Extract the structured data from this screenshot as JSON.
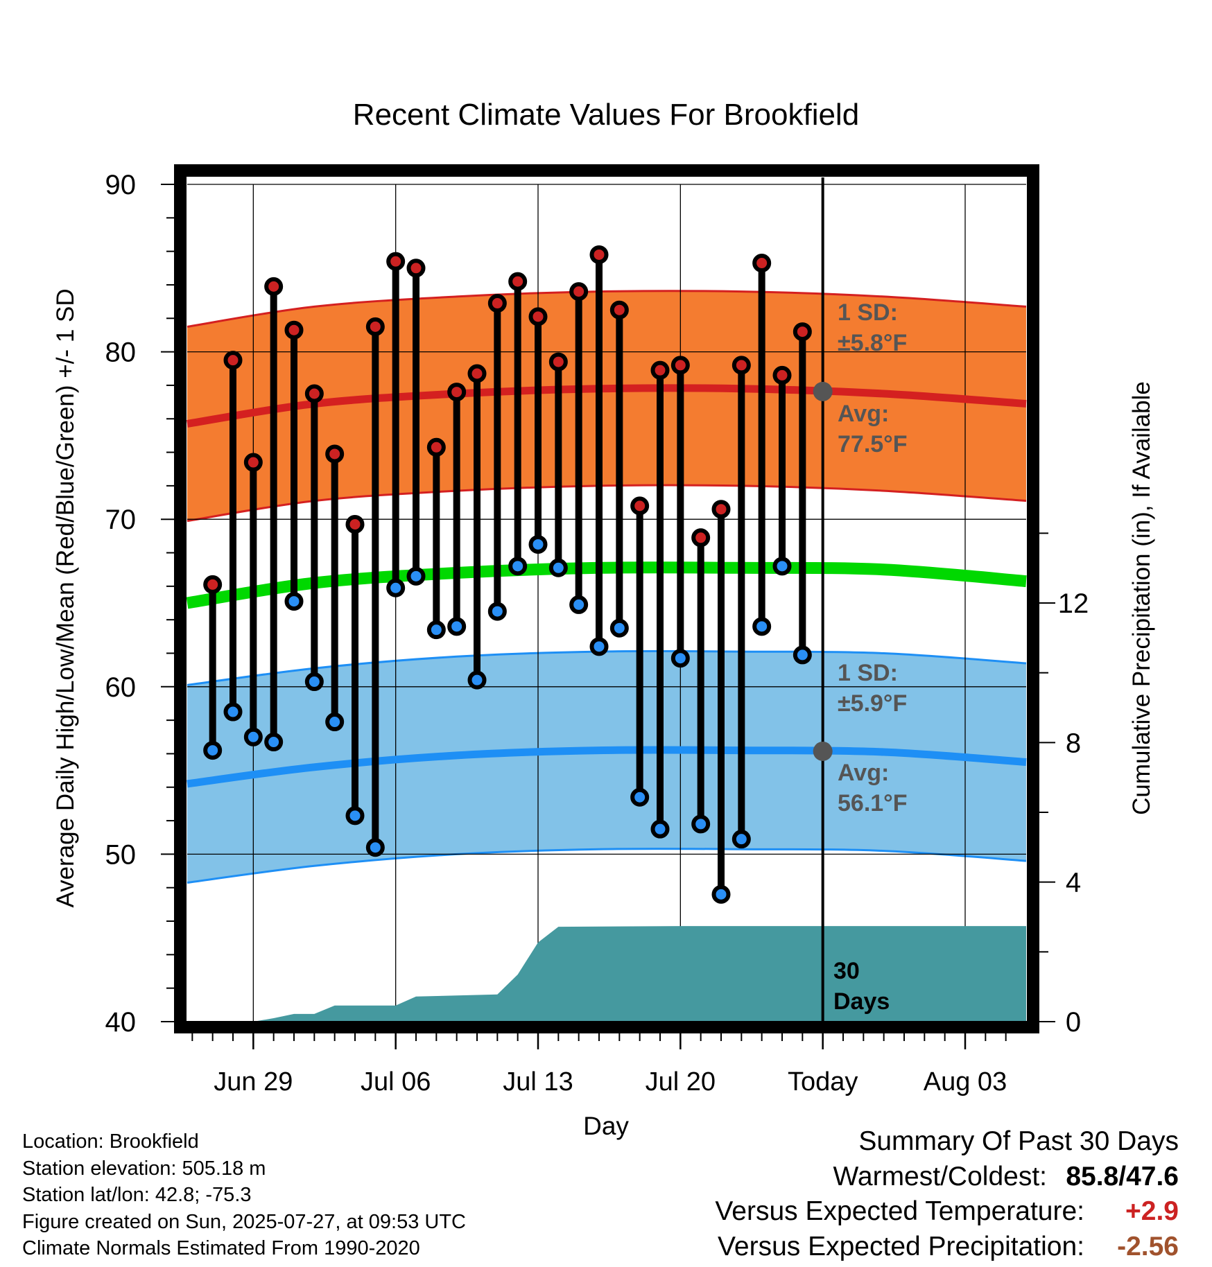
{
  "chart_data": {
    "type": "line",
    "title": "Recent Climate Values For Brookfield",
    "xlabel": "Day",
    "ylabel": "Average Daily High/Low/Mean (Red/Blue/Green) +/- 1 SD",
    "y2label": "Cumulative Precipitation (in), If Available",
    "ylim": [
      40,
      90
    ],
    "y2lim": [
      0,
      24
    ],
    "y_ticks": [
      40,
      50,
      60,
      70,
      80,
      90
    ],
    "y2_ticks": [
      0,
      4,
      8,
      12
    ],
    "x_tick_labels": [
      "Jun 29",
      "Jul 06",
      "Jul 13",
      "Jul 20",
      "Today",
      "Aug 03"
    ],
    "x_tick_dates": [
      "2025-06-29",
      "2025-07-06",
      "2025-07-13",
      "2025-07-20",
      "2025-07-27",
      "2025-08-03"
    ],
    "x_range": [
      "2025-06-25.75",
      "2025-08-06"
    ],
    "today": "2025-07-27",
    "grid": true,
    "days": [
      "2025-06-27",
      "2025-06-28",
      "2025-06-29",
      "2025-06-30",
      "2025-07-01",
      "2025-07-02",
      "2025-07-03",
      "2025-07-04",
      "2025-07-05",
      "2025-07-06",
      "2025-07-07",
      "2025-07-08",
      "2025-07-09",
      "2025-07-10",
      "2025-07-11",
      "2025-07-12",
      "2025-07-13",
      "2025-07-14",
      "2025-07-15",
      "2025-07-16",
      "2025-07-17",
      "2025-07-18",
      "2025-07-19",
      "2025-07-20",
      "2025-07-21",
      "2025-07-22",
      "2025-07-23",
      "2025-07-24",
      "2025-07-25",
      "2025-07-26"
    ],
    "series": [
      {
        "name": "High",
        "color": "#cc2222",
        "values": [
          66.1,
          79.5,
          73.4,
          83.9,
          81.3,
          77.5,
          73.9,
          69.7,
          81.5,
          85.4,
          85.0,
          74.3,
          77.6,
          78.7,
          82.9,
          84.2,
          82.1,
          79.4,
          83.6,
          85.8,
          82.5,
          70.8,
          78.9,
          79.2,
          68.9,
          70.6,
          79.2,
          85.3,
          78.6,
          81.2
        ]
      },
      {
        "name": "Low",
        "color": "#2a8ff5",
        "values": [
          56.2,
          58.5,
          57.0,
          56.7,
          65.1,
          60.3,
          57.9,
          52.3,
          50.4,
          65.9,
          66.6,
          63.4,
          63.6,
          60.4,
          64.5,
          67.2,
          68.5,
          67.1,
          64.9,
          62.4,
          63.5,
          53.4,
          51.5,
          61.7,
          51.8,
          47.6,
          50.9,
          63.6,
          67.2,
          61.9
        ]
      }
    ],
    "normal_dates": [
      "2025-06-25.75",
      "2025-07-02",
      "2025-07-09",
      "2025-07-16",
      "2025-07-23",
      "2025-07-30",
      "2025-08-06"
    ],
    "normals": {
      "high_mean": [
        75.7,
        76.9,
        77.5,
        77.8,
        77.8,
        77.5,
        76.9
      ],
      "high_sd": 5.8,
      "low_mean": [
        54.2,
        55.2,
        55.9,
        56.2,
        56.2,
        56.1,
        55.5
      ],
      "low_sd": 5.9,
      "avg_mean": [
        65.0,
        66.2,
        66.8,
        67.1,
        67.1,
        67.0,
        66.3
      ]
    },
    "precip_dates": [
      "2025-06-25.75",
      "2025-06-29",
      "2025-06-30",
      "2025-07-01",
      "2025-07-02",
      "2025-07-03",
      "2025-07-06",
      "2025-07-07",
      "2025-07-11",
      "2025-07-12",
      "2025-07-13",
      "2025-07-14",
      "2025-07-20",
      "2025-08-06"
    ],
    "precip_cumulative": [
      0,
      0,
      0.1,
      0.22,
      0.22,
      0.46,
      0.46,
      0.72,
      0.78,
      1.35,
      2.27,
      2.72,
      2.74,
      2.74
    ],
    "annotations": {
      "high_sd_line1": "1 SD:",
      "high_sd_line2": "±5.8°F",
      "high_avg_line1": "Avg:",
      "high_avg_line2": "77.5°F",
      "low_sd_line1": "1 SD:",
      "low_sd_line2": "±5.9°F",
      "low_avg_line1": "Avg:",
      "low_avg_line2": "56.1°F",
      "days_line1": "30",
      "days_line2": "Days"
    },
    "colors": {
      "high_band": "#f47c30",
      "high_line": "#d42020",
      "low_band": "#82c2e8",
      "low_line": "#1e8ff5",
      "mean_line": "#00d800",
      "precip_fill": "#45999f",
      "marker_edge": "#000000",
      "annotation_text": "#555555"
    }
  },
  "info": {
    "location": "Location: Brookfield",
    "elevation": "Station elevation: 505.18 m",
    "latlon": "Station lat/lon: 42.8; -75.3",
    "created": "Figure created on Sun, 2025-07-27, at 09:53 UTC",
    "normals": "Climate Normals Estimated From 1990-2020"
  },
  "summary": {
    "title": "Summary Of Past 30 Days",
    "warmest_label": "Warmest/Coldest:",
    "warmest_value": "85.8/47.6",
    "temp_label": "Versus Expected Temperature:",
    "temp_value": "+2.9",
    "temp_color": "#cc2222",
    "precip_label": "Versus Expected Precipitation:",
    "precip_value": "-2.56",
    "precip_color": "#a0522d"
  }
}
